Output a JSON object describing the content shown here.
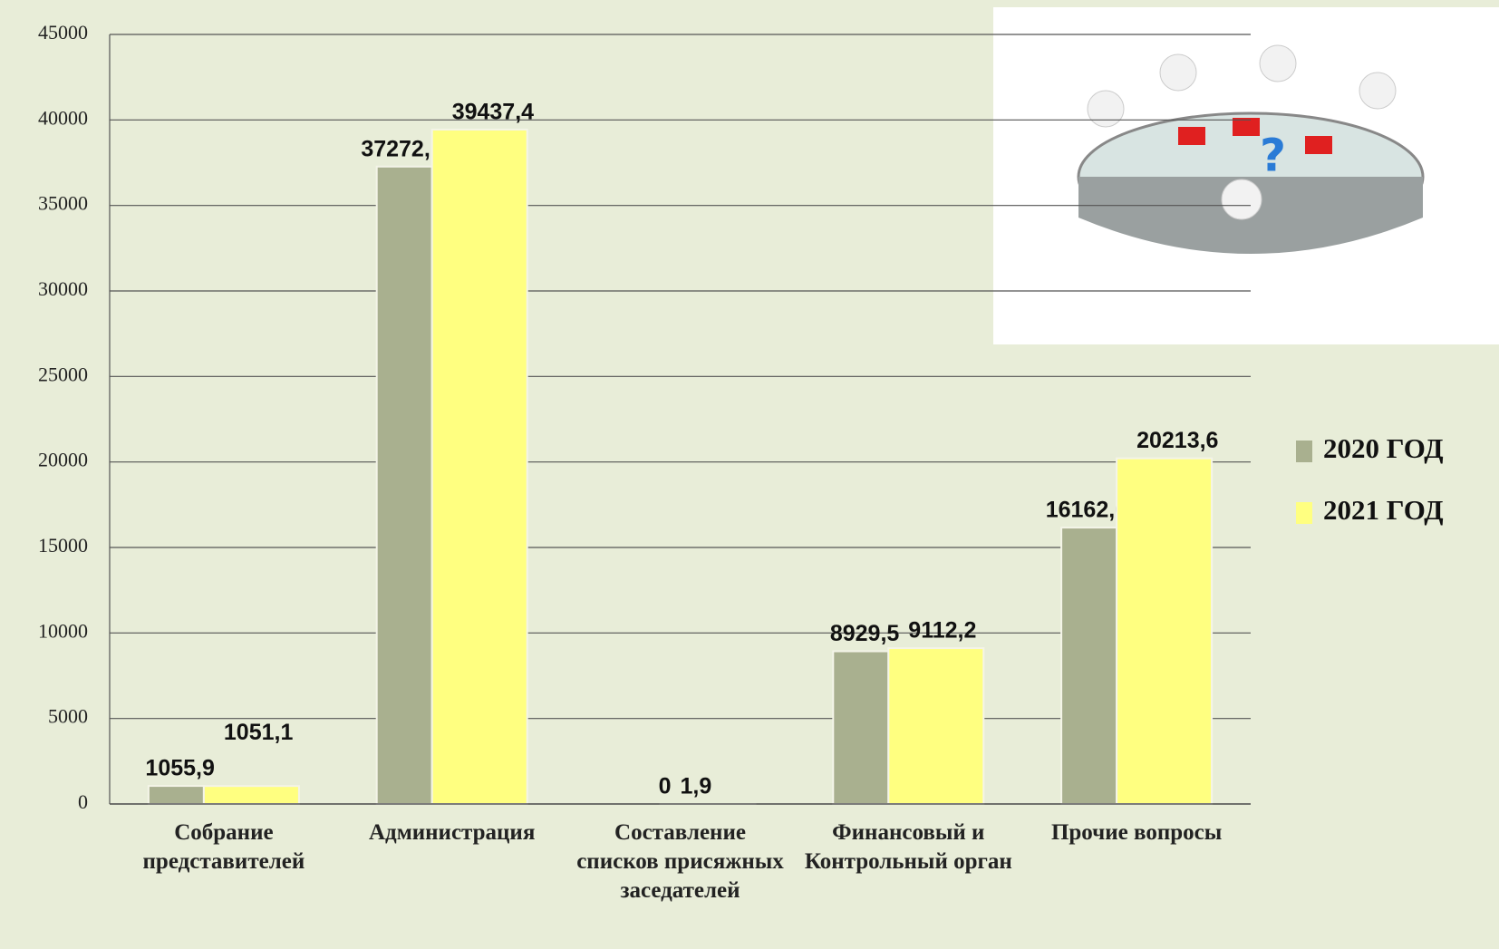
{
  "chart_data": {
    "type": "bar",
    "categories": [
      "Собрание представителей",
      "Администрация",
      "Составление списков присяжных заседателей",
      "Финансовый и Контрольный орган",
      "Прочие вопросы"
    ],
    "series": [
      {
        "name": "2020 ГОД",
        "color": "#a9b08f",
        "values": [
          1055.9,
          37272.1,
          0,
          8929.5,
          16162.6
        ],
        "value_labels": [
          "1055,9",
          "37272,1",
          "0",
          "8929,5",
          "16162,6"
        ]
      },
      {
        "name": "2021 ГОД",
        "color": "#ffff80",
        "values": [
          1051.1,
          39437.4,
          1.9,
          9112.2,
          20213.6
        ],
        "value_labels": [
          "1051,1",
          "39437,4",
          "1,9",
          "9112,2",
          "20213,6"
        ]
      }
    ],
    "ylim": [
      0,
      45000
    ],
    "yticks": [
      0,
      5000,
      10000,
      15000,
      20000,
      25000,
      30000,
      35000,
      40000,
      45000
    ],
    "grid": true,
    "legend": "right"
  }
}
